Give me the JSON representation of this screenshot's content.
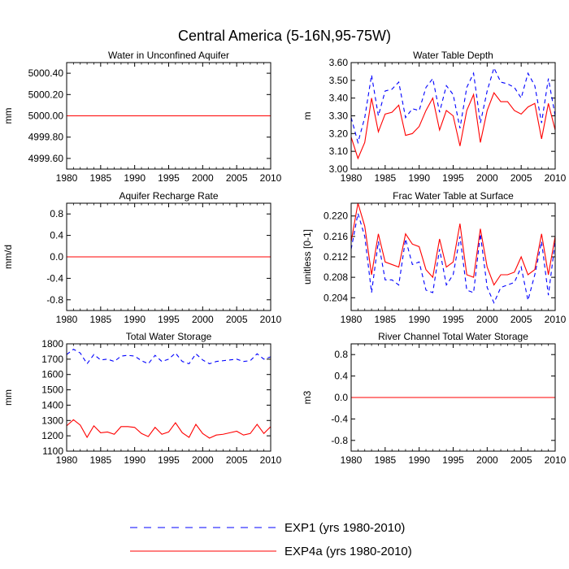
{
  "figure_title": "Central America (5-16N,95-75W)",
  "colors": {
    "exp1": "#0000ff",
    "exp4a": "#ff0000"
  },
  "legend": [
    {
      "label": "EXP1 (yrs 1980-2010)",
      "series": "exp1",
      "style": "dashed"
    },
    {
      "label": "EXP4a (yrs 1980-2010)",
      "series": "exp4a",
      "style": "solid"
    }
  ],
  "chart_data": [
    {
      "type": "line",
      "title": "Water in Unconfined Aquifer",
      "ylabel": "mm",
      "xlim": [
        1980,
        2010
      ],
      "ylim": [
        4999.5,
        5000.5
      ],
      "xticks": [
        1980,
        1985,
        1990,
        1995,
        2000,
        2005,
        2010
      ],
      "yticks": [
        4999.6,
        4999.8,
        5000.0,
        5000.2,
        5000.4
      ],
      "ytick_labels": [
        "4999.60",
        "4999.80",
        "5000.00",
        "5000.20",
        "5000.40"
      ],
      "series": [
        {
          "name": "EXP1",
          "values": [
            5000,
            5000,
            5000,
            5000,
            5000,
            5000,
            5000,
            5000,
            5000,
            5000,
            5000,
            5000,
            5000,
            5000,
            5000,
            5000,
            5000,
            5000,
            5000,
            5000,
            5000,
            5000,
            5000,
            5000,
            5000,
            5000,
            5000,
            5000,
            5000,
            5000,
            5000
          ]
        },
        {
          "name": "EXP4a",
          "values": [
            5000,
            5000,
            5000,
            5000,
            5000,
            5000,
            5000,
            5000,
            5000,
            5000,
            5000,
            5000,
            5000,
            5000,
            5000,
            5000,
            5000,
            5000,
            5000,
            5000,
            5000,
            5000,
            5000,
            5000,
            5000,
            5000,
            5000,
            5000,
            5000,
            5000,
            5000
          ]
        }
      ]
    },
    {
      "type": "line",
      "title": "Water Table Depth",
      "ylabel": "m",
      "xlim": [
        1980,
        2010
      ],
      "ylim": [
        3.0,
        3.6
      ],
      "xticks": [
        1980,
        1985,
        1990,
        1995,
        2000,
        2005,
        2010
      ],
      "yticks": [
        3.0,
        3.1,
        3.2,
        3.3,
        3.4,
        3.5,
        3.6
      ],
      "ytick_labels": [
        "3.00",
        "3.10",
        "3.20",
        "3.30",
        "3.40",
        "3.50",
        "3.60"
      ],
      "series": [
        {
          "name": "EXP1",
          "values": [
            3.29,
            3.15,
            3.29,
            3.53,
            3.3,
            3.44,
            3.45,
            3.49,
            3.29,
            3.34,
            3.33,
            3.46,
            3.51,
            3.32,
            3.47,
            3.42,
            3.23,
            3.46,
            3.54,
            3.26,
            3.44,
            3.57,
            3.49,
            3.48,
            3.46,
            3.4,
            3.54,
            3.47,
            3.26,
            3.51,
            3.3
          ]
        },
        {
          "name": "EXP4a",
          "values": [
            3.18,
            3.06,
            3.15,
            3.4,
            3.21,
            3.31,
            3.32,
            3.36,
            3.19,
            3.2,
            3.24,
            3.33,
            3.4,
            3.22,
            3.33,
            3.3,
            3.13,
            3.33,
            3.42,
            3.15,
            3.33,
            3.43,
            3.38,
            3.38,
            3.33,
            3.31,
            3.35,
            3.37,
            3.17,
            3.37,
            3.22
          ]
        }
      ]
    },
    {
      "type": "line",
      "title": "Aquifer Recharge Rate",
      "ylabel": "mm/d",
      "xlim": [
        1980,
        2010
      ],
      "ylim": [
        -1.0,
        1.0
      ],
      "xticks": [
        1980,
        1985,
        1990,
        1995,
        2000,
        2005,
        2010
      ],
      "yticks": [
        -0.8,
        -0.4,
        0.0,
        0.4,
        0.8
      ],
      "ytick_labels": [
        "-0.8",
        "-0.4",
        "0.0",
        "0.4",
        "0.8"
      ],
      "series": [
        {
          "name": "EXP1",
          "values": [
            0,
            0,
            0,
            0,
            0,
            0,
            0,
            0,
            0,
            0,
            0,
            0,
            0,
            0,
            0,
            0,
            0,
            0,
            0,
            0,
            0,
            0,
            0,
            0,
            0,
            0,
            0,
            0,
            0,
            0,
            0
          ]
        },
        {
          "name": "EXP4a",
          "values": [
            0,
            0,
            0,
            0,
            0,
            0,
            0,
            0,
            0,
            0,
            0,
            0,
            0,
            0,
            0,
            0,
            0,
            0,
            0,
            0,
            0,
            0,
            0,
            0,
            0,
            0,
            0,
            0,
            0,
            0,
            0
          ]
        }
      ]
    },
    {
      "type": "line",
      "title": "Frac Water Table at Surface",
      "ylabel": "unitless [0-1]",
      "xlim": [
        1980,
        2010
      ],
      "ylim": [
        0.2015,
        0.2225
      ],
      "xticks": [
        1980,
        1985,
        1990,
        1995,
        2000,
        2005,
        2010
      ],
      "yticks": [
        0.204,
        0.208,
        0.212,
        0.216,
        0.22
      ],
      "ytick_labels": [
        "0.204",
        "0.208",
        "0.212",
        "0.216",
        "0.220"
      ],
      "series": [
        {
          "name": "EXP1",
          "values": [
            0.2135,
            0.2205,
            0.216,
            0.205,
            0.215,
            0.2075,
            0.2075,
            0.2065,
            0.2155,
            0.2105,
            0.211,
            0.2055,
            0.205,
            0.2135,
            0.2065,
            0.2085,
            0.216,
            0.2055,
            0.205,
            0.2165,
            0.206,
            0.203,
            0.206,
            0.2065,
            0.207,
            0.21,
            0.2035,
            0.2085,
            0.215,
            0.2045,
            0.215
          ]
        },
        {
          "name": "EXP4a",
          "values": [
            0.215,
            0.2225,
            0.218,
            0.2085,
            0.2165,
            0.211,
            0.2105,
            0.21,
            0.2165,
            0.2145,
            0.214,
            0.2095,
            0.208,
            0.2155,
            0.21,
            0.211,
            0.2185,
            0.2085,
            0.208,
            0.2175,
            0.21,
            0.2065,
            0.2085,
            0.2085,
            0.209,
            0.212,
            0.2085,
            0.2095,
            0.2165,
            0.2085,
            0.216
          ]
        }
      ]
    },
    {
      "type": "line",
      "title": "Total Water Storage",
      "ylabel": "mm",
      "xlim": [
        1980,
        2010
      ],
      "ylim": [
        1100,
        1800
      ],
      "xticks": [
        1980,
        1985,
        1990,
        1995,
        2000,
        2005,
        2010
      ],
      "yticks": [
        1100,
        1200,
        1300,
        1400,
        1500,
        1600,
        1700,
        1800
      ],
      "ytick_labels": [
        "1100",
        "1200",
        "1300",
        "1400",
        "1500",
        "1600",
        "1700",
        "1800"
      ],
      "series": [
        {
          "name": "EXP1",
          "values": [
            1730,
            1765,
            1740,
            1670,
            1730,
            1695,
            1700,
            1685,
            1720,
            1725,
            1720,
            1690,
            1670,
            1725,
            1685,
            1700,
            1740,
            1685,
            1670,
            1735,
            1695,
            1670,
            1685,
            1690,
            1695,
            1700,
            1685,
            1690,
            1735,
            1700,
            1715
          ]
        },
        {
          "name": "EXP4a",
          "values": [
            1265,
            1305,
            1270,
            1190,
            1265,
            1220,
            1225,
            1210,
            1260,
            1260,
            1255,
            1215,
            1195,
            1255,
            1210,
            1225,
            1285,
            1220,
            1190,
            1275,
            1215,
            1185,
            1205,
            1210,
            1220,
            1230,
            1205,
            1215,
            1275,
            1215,
            1260
          ]
        }
      ]
    },
    {
      "type": "line",
      "title": "River Channel Total Water Storage",
      "ylabel": "m3",
      "xlim": [
        1980,
        2010
      ],
      "ylim": [
        -1.0,
        1.0
      ],
      "xticks": [
        1980,
        1985,
        1990,
        1995,
        2000,
        2005,
        2010
      ],
      "yticks": [
        -0.8,
        -0.4,
        0.0,
        0.4,
        0.8
      ],
      "ytick_labels": [
        "-0.8",
        "-0.4",
        "0.0",
        "0.4",
        "0.8"
      ],
      "series": [
        {
          "name": "EXP1",
          "values": [
            0,
            0,
            0,
            0,
            0,
            0,
            0,
            0,
            0,
            0,
            0,
            0,
            0,
            0,
            0,
            0,
            0,
            0,
            0,
            0,
            0,
            0,
            0,
            0,
            0,
            0,
            0,
            0,
            0,
            0,
            0
          ]
        },
        {
          "name": "EXP4a",
          "values": [
            0,
            0,
            0,
            0,
            0,
            0,
            0,
            0,
            0,
            0,
            0,
            0,
            0,
            0,
            0,
            0,
            0,
            0,
            0,
            0,
            0,
            0,
            0,
            0,
            0,
            0,
            0,
            0,
            0,
            0,
            0
          ]
        }
      ]
    }
  ]
}
